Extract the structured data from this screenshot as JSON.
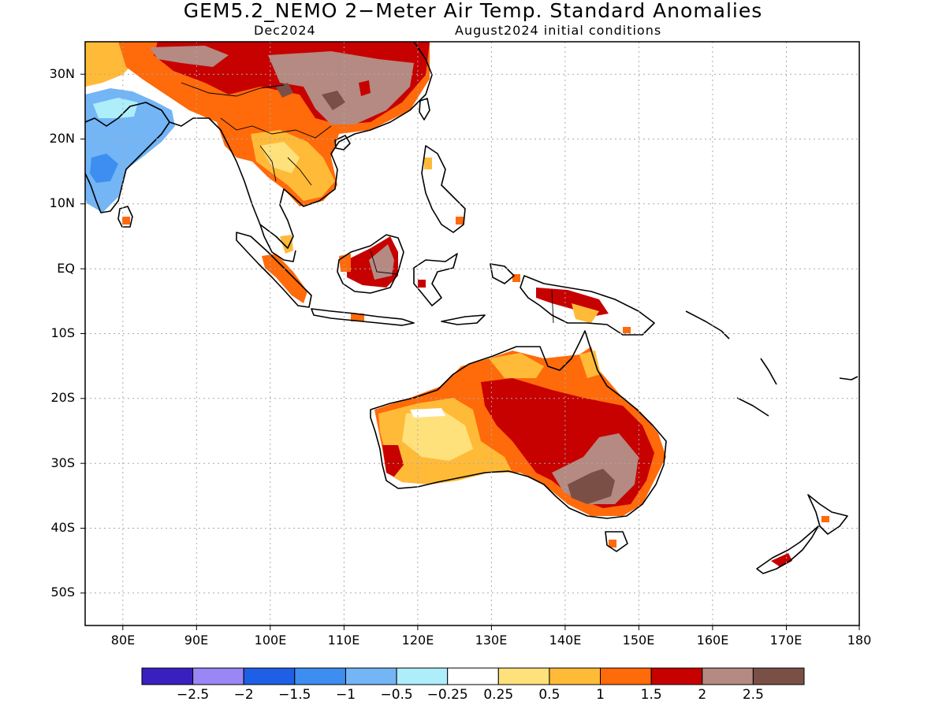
{
  "title": "GEM5.2_NEMO 2−Meter Air Temp. Standard Anomalies",
  "valid_month": "Dec2024",
  "init_conditions": "August2024 initial conditions",
  "map": {
    "lon_range": [
      75,
      180
    ],
    "lat_range": [
      -55,
      35
    ],
    "lat_labels": [
      "30N",
      "20N",
      "10N",
      "EQ",
      "10S",
      "20S",
      "30S",
      "40S",
      "50S"
    ],
    "lon_labels": [
      "80E",
      "90E",
      "100E",
      "110E",
      "120E",
      "130E",
      "140E",
      "150E",
      "160E",
      "170E",
      "180"
    ],
    "grid": true
  },
  "colorbar": {
    "colors": [
      "#3a1fc0",
      "#9a86f5",
      "#1f5fe5",
      "#3d8ef0",
      "#73b5f5",
      "#aeeefa",
      "#ffffff",
      "#ffe17c",
      "#ffba38",
      "#ff6a0a",
      "#c70000",
      "#b48a82",
      "#7a5046"
    ],
    "labels": [
      "−2.5",
      "−2",
      "−1.5",
      "−1",
      "−0.5",
      "−0.25",
      "0.25",
      "0.5",
      "1",
      "1.5",
      "2",
      "2.5"
    ]
  }
}
